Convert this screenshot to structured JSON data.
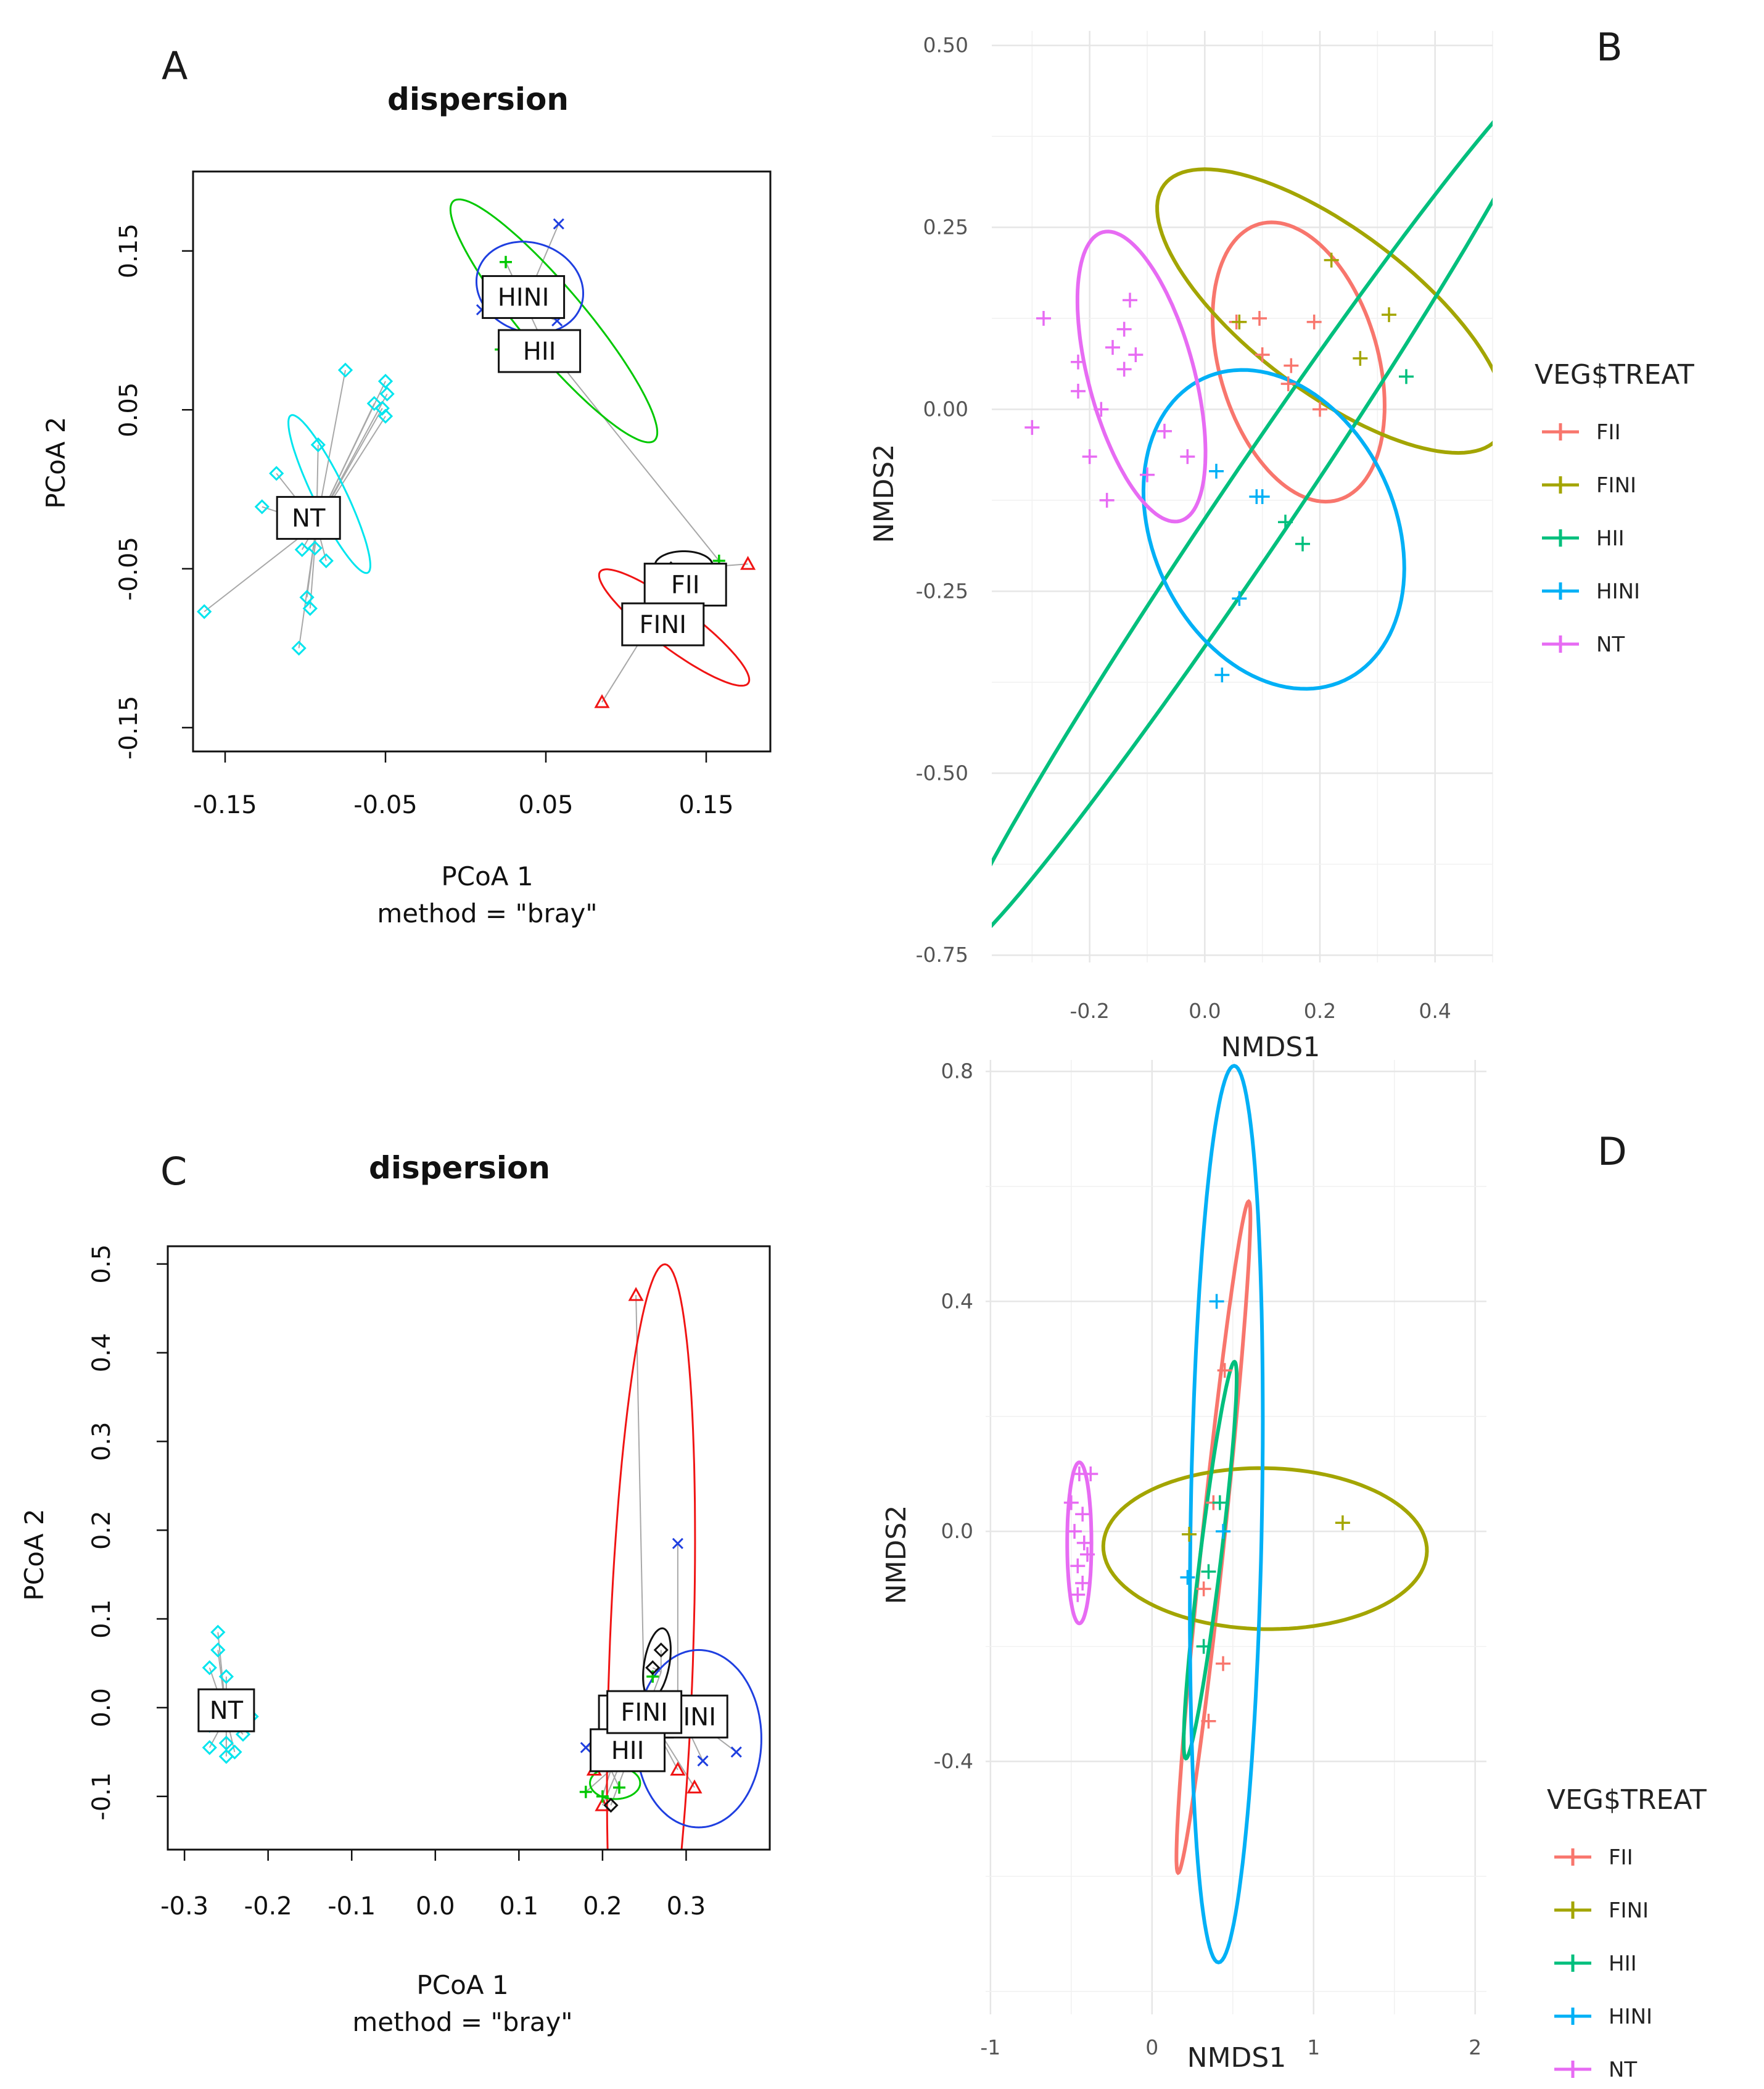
{
  "chart_data": [
    {
      "panel": "A",
      "type": "scatter",
      "title": "dispersion",
      "xlabel": "PCoA 1",
      "subtitle": "method = \"bray\"",
      "ylabel": "PCoA 2",
      "xlim": [
        -0.17,
        0.19
      ],
      "ylim": [
        -0.165,
        0.2
      ],
      "xticks": [
        -0.15,
        -0.05,
        0.05,
        0.15
      ],
      "xtick_labels": [
        "-0.15",
        "-0.05",
        "0.05",
        "0.15"
      ],
      "yticks": [
        -0.15,
        -0.05,
        0.05,
        0.15
      ],
      "ytick_labels": [
        "-0.15",
        "-0.05",
        "0.05",
        "0.15"
      ],
      "groups": [
        {
          "name": "NT",
          "color": "#00e5ee",
          "marker": "diamond",
          "centroid": [
            -0.093,
            -0.022
          ],
          "label_pos": [
            -0.098,
            -0.018
          ],
          "ellipse": {
            "cx": -0.085,
            "cy": -0.003,
            "rx": 0.055,
            "ry": 0.01,
            "angle": -64
          },
          "points": [
            [
              -0.075,
              0.075
            ],
            [
              -0.05,
              0.068
            ],
            [
              -0.049,
              0.06
            ],
            [
              -0.052,
              0.051
            ],
            [
              -0.05,
              0.046
            ],
            [
              -0.057,
              0.054
            ],
            [
              -0.092,
              0.028
            ],
            [
              -0.118,
              0.01
            ],
            [
              -0.127,
              -0.011
            ],
            [
              -0.102,
              -0.038
            ],
            [
              -0.094,
              -0.037
            ],
            [
              -0.087,
              -0.045
            ],
            [
              -0.097,
              -0.075
            ],
            [
              -0.104,
              -0.1
            ],
            [
              -0.163,
              -0.077
            ],
            [
              -0.099,
              -0.068
            ]
          ]
        },
        {
          "name": "HII",
          "color": "#00c800",
          "marker": "plus",
          "centroid": [
            0.048,
            0.093
          ],
          "label_pos": [
            0.046,
            0.087
          ],
          "ellipse": {
            "cx": 0.055,
            "cy": 0.106,
            "rx": 0.098,
            "ry": 0.02,
            "angle": -50
          },
          "points": [
            [
              0.025,
              0.143
            ],
            [
              0.022,
              0.088
            ],
            [
              0.158,
              -0.045
            ]
          ]
        },
        {
          "name": "HINI",
          "color": "#1f3fe0",
          "marker": "x",
          "centroid": [
            0.036,
            0.115
          ],
          "label_pos": [
            0.036,
            0.121
          ],
          "ellipse": {
            "cx": 0.04,
            "cy": 0.127,
            "rx": 0.034,
            "ry": 0.028,
            "angle": -20
          },
          "points": [
            [
              0.058,
              0.167
            ],
            [
              0.01,
              0.113
            ],
            [
              0.057,
              0.106
            ]
          ]
        },
        {
          "name": "FII",
          "color": "#f01414",
          "marker": "triangle",
          "centroid": [
            0.137,
            -0.05
          ],
          "label_pos": [
            0.137,
            -0.06
          ],
          "ellipse": {
            "cx": 0.13,
            "cy": -0.087,
            "rx": 0.058,
            "ry": 0.013,
            "angle": -37
          },
          "points": [
            [
              0.176,
              -0.047
            ],
            [
              0.085,
              -0.134
            ]
          ]
        },
        {
          "name": "FINI",
          "color": "#111111",
          "marker": "diamond",
          "centroid": [
            0.135,
            -0.052
          ],
          "label_pos": [
            0.123,
            -0.085
          ],
          "ellipse": {
            "cx": 0.136,
            "cy": -0.048,
            "rx": 0.018,
            "ry": 0.009,
            "angle": 0
          },
          "points": [
            [
              0.128,
              -0.05
            ],
            [
              0.14,
              -0.054
            ]
          ]
        }
      ]
    },
    {
      "panel": "B",
      "type": "scatter",
      "xlabel": "NMDS1",
      "ylabel": "NMDS2",
      "xlim": [
        -0.37,
        0.5
      ],
      "ylim": [
        -0.76,
        0.52
      ],
      "xticks": [
        -0.2,
        0.0,
        0.2,
        0.4
      ],
      "xtick_labels": [
        "-0.2",
        "0.0",
        "0.2",
        "0.4"
      ],
      "yticks": [
        -0.75,
        -0.5,
        -0.25,
        0.0,
        0.25,
        0.5
      ],
      "ytick_labels": [
        "-0.75",
        "-0.50",
        "-0.25",
        "0.00",
        "0.25",
        "0.50"
      ],
      "legend": {
        "title": "VEG$TREAT",
        "position": "right",
        "entries": [
          "FII",
          "FINI",
          "HII",
          "HINI",
          "NT"
        ]
      },
      "groups": [
        {
          "name": "FII",
          "color": "#f8766d",
          "ellipse": {
            "cx": 0.163,
            "cy": 0.065,
            "rx": 0.2,
            "ry": 0.135,
            "angle": -74
          },
          "points": [
            [
              0.095,
              0.125
            ],
            [
              0.19,
              0.12
            ],
            [
              0.1,
              0.075
            ],
            [
              0.15,
              0.06
            ],
            [
              0.055,
              0.12
            ],
            [
              0.2,
              0.0
            ],
            [
              0.145,
              0.035
            ]
          ]
        },
        {
          "name": "FINI",
          "color": "#a3a500",
          "ellipse": {
            "cx": 0.22,
            "cy": 0.135,
            "rx": 0.33,
            "ry": 0.12,
            "angle": -37
          },
          "points": [
            [
              0.22,
              0.205
            ],
            [
              0.32,
              0.13
            ],
            [
              0.27,
              0.07
            ],
            [
              0.06,
              0.12
            ]
          ]
        },
        {
          "name": "HII",
          "color": "#00bf7d",
          "ellipse": {
            "cx": 0.085,
            "cy": -0.14,
            "rx": 0.78,
            "ry": 0.058,
            "angle": 56
          },
          "points": [
            [
              0.35,
              0.045
            ],
            [
              0.14,
              -0.155
            ],
            [
              0.17,
              -0.185
            ]
          ]
        },
        {
          "name": "HINI",
          "color": "#00b0f6",
          "ellipse": {
            "cx": 0.12,
            "cy": -0.165,
            "rx": 0.237,
            "ry": 0.2,
            "angle": -65
          },
          "points": [
            [
              0.02,
              -0.085
            ],
            [
              0.09,
              -0.12
            ],
            [
              0.1,
              -0.12
            ],
            [
              0.06,
              -0.26
            ],
            [
              0.03,
              -0.365
            ]
          ]
        },
        {
          "name": "NT",
          "color": "#e76bf3",
          "ellipse": {
            "cx": -0.11,
            "cy": 0.045,
            "rx": 0.208,
            "ry": 0.09,
            "angle": -75
          },
          "points": [
            [
              -0.28,
              0.125
            ],
            [
              -0.13,
              0.15
            ],
            [
              -0.14,
              0.11
            ],
            [
              -0.16,
              0.085
            ],
            [
              -0.12,
              0.075
            ],
            [
              -0.22,
              0.065
            ],
            [
              -0.14,
              0.055
            ],
            [
              -0.22,
              0.025
            ],
            [
              -0.18,
              0.0
            ],
            [
              -0.3,
              -0.025
            ],
            [
              -0.07,
              -0.03
            ],
            [
              -0.2,
              -0.065
            ],
            [
              -0.1,
              -0.09
            ],
            [
              -0.03,
              -0.065
            ],
            [
              -0.17,
              -0.125
            ]
          ]
        }
      ]
    },
    {
      "panel": "C",
      "type": "scatter",
      "title": "dispersion",
      "xlabel": "PCoA 1",
      "subtitle": "method = \"bray\"",
      "ylabel": "PCoA 2",
      "xlim": [
        -0.32,
        0.4
      ],
      "ylim": [
        -0.16,
        0.52
      ],
      "xticks": [
        -0.3,
        -0.2,
        -0.1,
        0.0,
        0.1,
        0.2,
        0.3
      ],
      "xtick_labels": [
        "-0.3",
        "-0.2",
        "-0.1",
        "0.0",
        "0.1",
        "0.2",
        "0.3"
      ],
      "yticks": [
        -0.1,
        0.0,
        0.1,
        0.2,
        0.3,
        0.4,
        0.5
      ],
      "ytick_labels": [
        "-0.1",
        "0.0",
        "0.1",
        "0.2",
        "0.3",
        "0.4",
        "0.5"
      ],
      "groups": [
        {
          "name": "NT",
          "color": "#00e5ee",
          "marker": "diamond",
          "centroid": [
            -0.25,
            -0.01
          ],
          "label_pos": [
            -0.25,
            -0.003
          ],
          "points": [
            [
              -0.26,
              0.085
            ],
            [
              -0.26,
              0.065
            ],
            [
              -0.27,
              0.045
            ],
            [
              -0.25,
              0.035
            ],
            [
              -0.23,
              0.01
            ],
            [
              -0.24,
              0.0
            ],
            [
              -0.22,
              -0.01
            ],
            [
              -0.27,
              -0.02
            ],
            [
              -0.23,
              -0.03
            ],
            [
              -0.25,
              -0.04
            ],
            [
              -0.27,
              -0.045
            ],
            [
              -0.24,
              -0.05
            ],
            [
              -0.25,
              -0.055
            ]
          ]
        },
        {
          "name": "FII",
          "color": "#f01414",
          "marker": "triangle",
          "centroid": [
            0.25,
            0.0
          ],
          "label_pos": [
            0.24,
            -0.01
          ],
          "ellipse": {
            "cx": 0.258,
            "cy": 0.05,
            "rx": 0.45,
            "ry": 0.05,
            "angle": 88
          },
          "points": [
            [
              0.24,
              0.465
            ],
            [
              0.19,
              -0.07
            ],
            [
              0.29,
              -0.07
            ],
            [
              0.31,
              -0.09
            ],
            [
              0.2,
              -0.11
            ]
          ]
        },
        {
          "name": "HINI",
          "color": "#1f3fe0",
          "marker": "x",
          "centroid": [
            0.29,
            0.0
          ],
          "label_pos": [
            0.305,
            -0.01
          ],
          "ellipse": {
            "cx": 0.315,
            "cy": -0.035,
            "rx": 0.1,
            "ry": 0.075,
            "angle": 90
          },
          "points": [
            [
              0.29,
              0.185
            ],
            [
              0.18,
              -0.045
            ],
            [
              0.32,
              -0.06
            ],
            [
              0.36,
              -0.05
            ]
          ]
        },
        {
          "name": "HII",
          "color": "#00c800",
          "marker": "plus",
          "centroid": [
            0.21,
            -0.07
          ],
          "label_pos": [
            0.23,
            -0.048
          ],
          "ellipse": {
            "cx": 0.215,
            "cy": -0.085,
            "rx": 0.03,
            "ry": 0.018,
            "angle": 0
          },
          "points": [
            [
              0.18,
              -0.095
            ],
            [
              0.2,
              -0.1
            ],
            [
              0.22,
              -0.09
            ],
            [
              0.26,
              0.035
            ]
          ]
        },
        {
          "name": "FINI",
          "color": "#111111",
          "marker": "diamond",
          "centroid": [
            0.27,
            0.04
          ],
          "label_pos": [
            0.25,
            -0.005
          ],
          "ellipse": {
            "cx": 0.265,
            "cy": 0.05,
            "rx": 0.04,
            "ry": 0.015,
            "angle": 80
          },
          "points": [
            [
              0.27,
              0.065
            ],
            [
              0.26,
              0.045
            ],
            [
              0.21,
              -0.11
            ]
          ]
        }
      ]
    },
    {
      "panel": "D",
      "type": "scatter",
      "xlabel": "NMDS1",
      "ylabel": "NMDS2",
      "xlim": [
        -1.03,
        2.07
      ],
      "ylim": [
        -0.84,
        0.82
      ],
      "xticks": [
        -1,
        0,
        1,
        2
      ],
      "xtick_labels": [
        "-1",
        "0",
        "1",
        "2"
      ],
      "yticks": [
        -0.4,
        0.0,
        0.4,
        0.8
      ],
      "ytick_labels": [
        "-0.4",
        "0.0",
        "0.4",
        "0.8"
      ],
      "legend": {
        "title": "VEG$TREAT",
        "position": "right",
        "entries": [
          "FII",
          "FINI",
          "HII",
          "HINI",
          "NT"
        ]
      },
      "groups": [
        {
          "name": "FII",
          "color": "#f8766d",
          "ellipse": {
            "cx": 0.38,
            "cy": -0.01,
            "rx": 0.59,
            "ry": 0.065,
            "angle": 84
          },
          "points": [
            [
              0.45,
              0.28
            ],
            [
              0.38,
              0.05
            ],
            [
              0.32,
              -0.1
            ],
            [
              0.44,
              -0.23
            ],
            [
              0.35,
              -0.33
            ]
          ]
        },
        {
          "name": "FINI",
          "color": "#a3a500",
          "ellipse": {
            "cx": 0.7,
            "cy": -0.03,
            "rx": 1.0,
            "ry": 0.14,
            "angle": -1
          },
          "points": [
            [
              1.18,
              0.015
            ],
            [
              0.23,
              -0.005
            ]
          ]
        },
        {
          "name": "HII",
          "color": "#00bf7d",
          "ellipse": {
            "cx": 0.36,
            "cy": -0.05,
            "rx": 0.35,
            "ry": 0.06,
            "angle": 83
          },
          "points": [
            [
              0.42,
              0.05
            ],
            [
              0.35,
              -0.07
            ],
            [
              0.32,
              -0.2
            ]
          ]
        },
        {
          "name": "HINI",
          "color": "#00b0f6",
          "ellipse": {
            "cx": 0.46,
            "cy": 0.03,
            "rx": 0.78,
            "ry": 0.22,
            "angle": 89
          },
          "points": [
            [
              0.4,
              0.4
            ],
            [
              0.22,
              -0.08
            ],
            [
              0.44,
              0.0
            ]
          ]
        },
        {
          "name": "NT",
          "color": "#e76bf3",
          "ellipse": {
            "cx": -0.45,
            "cy": -0.02,
            "rx": 0.14,
            "ry": 0.075,
            "angle": 90
          },
          "points": [
            [
              -0.45,
              0.1
            ],
            [
              -0.38,
              0.1
            ],
            [
              -0.5,
              0.05
            ],
            [
              -0.43,
              0.03
            ],
            [
              -0.48,
              0.0
            ],
            [
              -0.42,
              -0.02
            ],
            [
              -0.4,
              -0.04
            ],
            [
              -0.46,
              -0.06
            ],
            [
              -0.43,
              -0.09
            ],
            [
              -0.46,
              -0.11
            ]
          ]
        }
      ]
    }
  ]
}
